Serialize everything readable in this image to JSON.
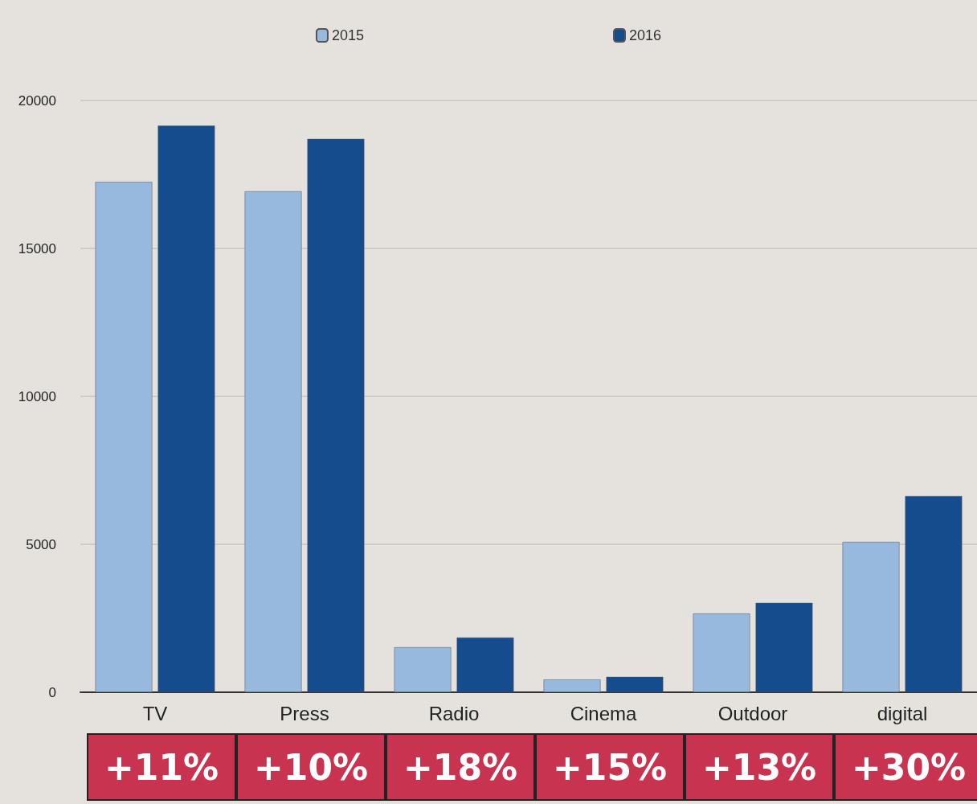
{
  "chart_data": {
    "type": "bar",
    "categories": [
      "TV",
      "Press",
      "Radio",
      "Cinema",
      "Outdoor",
      "digital"
    ],
    "series": [
      {
        "name": "2015",
        "color": "#97b9dd",
        "values": [
          17250,
          16930,
          1520,
          430,
          2660,
          5080
        ]
      },
      {
        "name": "2016",
        "color": "#154c8e",
        "values": [
          19150,
          18700,
          1850,
          520,
          3020,
          6630
        ]
      }
    ],
    "ylim": [
      0,
      20000
    ],
    "yticks": [
      0,
      5000,
      10000,
      15000,
      20000
    ],
    "grid": "y",
    "legend": "top",
    "annotations": [
      "+11%",
      "+10%",
      "+18%",
      "+15%",
      "+13%",
      "+30%"
    ]
  }
}
